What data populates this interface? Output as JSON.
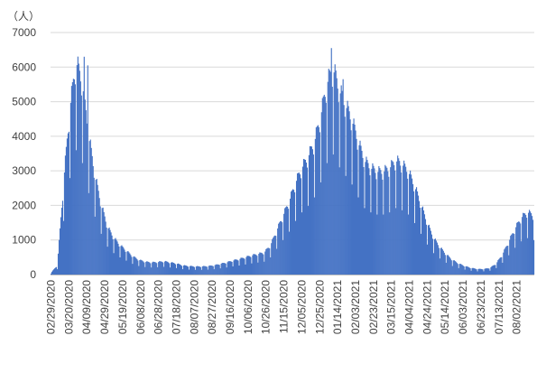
{
  "chart_data": {
    "type": "bar",
    "title": "",
    "xlabel": "",
    "ylabel": "",
    "unit_label": "（人）",
    "ylim": [
      0,
      7000
    ],
    "yticks": [
      0,
      1000,
      2000,
      3000,
      4000,
      5000,
      6000,
      7000
    ],
    "ytick_labels": [
      "0",
      "1000",
      "2000",
      "3000",
      "4000",
      "5000",
      "6000",
      "7000"
    ],
    "bar_color": "#4472C4",
    "grid": true,
    "legend": "none",
    "x_start": "02/29/2020",
    "x_end": "08/21/2021",
    "xtick_labels": [
      "02/29/2020",
      "03/20/2020",
      "04/09/2020",
      "04/29/2020",
      "05/19/2020",
      "06/08/2020",
      "06/28/2020",
      "07/18/2020",
      "08/07/2020",
      "08/27/2020",
      "09/16/2020",
      "10/06/2020",
      "10/26/2020",
      "11/15/2020",
      "12/05/2020",
      "12/25/2020",
      "01/14/2021",
      "02/03/2021",
      "02/23/2021",
      "03/15/2021",
      "04/04/2021",
      "04/24/2021",
      "05/14/2021",
      "06/03/2021",
      "06/23/2021",
      "07/13/2021",
      "08/02/2021"
    ],
    "weekly_values": [
      [
        "02/29/2020",
        50
      ],
      [
        "03/07/2020",
        250
      ],
      [
        "03/14/2020",
        2500
      ],
      [
        "03/21/2020",
        4500
      ],
      [
        "03/28/2020",
        5800
      ],
      [
        "04/04/2020",
        5200
      ],
      [
        "04/11/2020",
        3800
      ],
      [
        "04/18/2020",
        2700
      ],
      [
        "04/25/2020",
        1900
      ],
      [
        "05/02/2020",
        1300
      ],
      [
        "05/09/2020",
        1000
      ],
      [
        "05/16/2020",
        800
      ],
      [
        "05/23/2020",
        650
      ],
      [
        "05/30/2020",
        500
      ],
      [
        "06/06/2020",
        400
      ],
      [
        "06/13/2020",
        350
      ],
      [
        "06/20/2020",
        330
      ],
      [
        "06/27/2020",
        340
      ],
      [
        "07/04/2020",
        360
      ],
      [
        "07/11/2020",
        330
      ],
      [
        "07/18/2020",
        300
      ],
      [
        "07/25/2020",
        250
      ],
      [
        "08/01/2020",
        230
      ],
      [
        "08/08/2020",
        220
      ],
      [
        "08/15/2020",
        220
      ],
      [
        "08/22/2020",
        230
      ],
      [
        "08/29/2020",
        250
      ],
      [
        "09/05/2020",
        290
      ],
      [
        "09/12/2020",
        330
      ],
      [
        "09/19/2020",
        380
      ],
      [
        "09/26/2020",
        420
      ],
      [
        "10/03/2020",
        470
      ],
      [
        "10/10/2020",
        520
      ],
      [
        "10/17/2020",
        560
      ],
      [
        "10/24/2020",
        600
      ],
      [
        "10/31/2020",
        800
      ],
      [
        "11/07/2020",
        1200
      ],
      [
        "11/14/2020",
        1600
      ],
      [
        "11/21/2020",
        2000
      ],
      [
        "11/28/2020",
        2500
      ],
      [
        "12/05/2020",
        2900
      ],
      [
        "12/12/2020",
        3200
      ],
      [
        "12/19/2020",
        3600
      ],
      [
        "12/26/2020",
        4300
      ],
      [
        "01/02/2021",
        5200
      ],
      [
        "01/09/2021",
        5600
      ],
      [
        "01/16/2021",
        5000
      ],
      [
        "01/23/2021",
        4600
      ],
      [
        "01/30/2021",
        4200
      ],
      [
        "02/06/2021",
        3600
      ],
      [
        "02/13/2021",
        3100
      ],
      [
        "02/20/2021",
        2900
      ],
      [
        "02/27/2021",
        2800
      ],
      [
        "03/06/2021",
        2800
      ],
      [
        "03/13/2021",
        2900
      ],
      [
        "03/20/2021",
        3100
      ],
      [
        "03/27/2021",
        3000
      ],
      [
        "04/03/2021",
        2800
      ],
      [
        "04/10/2021",
        2400
      ],
      [
        "04/17/2021",
        1900
      ],
      [
        "04/24/2021",
        1400
      ],
      [
        "05/01/2021",
        1000
      ],
      [
        "05/08/2021",
        750
      ],
      [
        "05/15/2021",
        550
      ],
      [
        "05/22/2021",
        400
      ],
      [
        "05/29/2021",
        300
      ],
      [
        "06/05/2021",
        230
      ],
      [
        "06/12/2021",
        180
      ],
      [
        "06/19/2021",
        150
      ],
      [
        "06/26/2021",
        150
      ],
      [
        "07/03/2021",
        180
      ],
      [
        "07/10/2021",
        300
      ],
      [
        "07/17/2021",
        550
      ],
      [
        "07/24/2021",
        900
      ],
      [
        "07/31/2021",
        1250
      ],
      [
        "08/07/2021",
        1550
      ],
      [
        "08/14/2021",
        1700
      ],
      [
        "08/21/2021",
        1600
      ]
    ],
    "daily_peaks": [
      [
        "03/31/2020",
        6100
      ],
      [
        "04/06/2020",
        6300
      ],
      [
        "04/10/2020",
        6050
      ],
      [
        "01/07/2021",
        6550
      ],
      [
        "01/12/2021",
        5900
      ],
      [
        "01/20/2021",
        5650
      ]
    ]
  }
}
